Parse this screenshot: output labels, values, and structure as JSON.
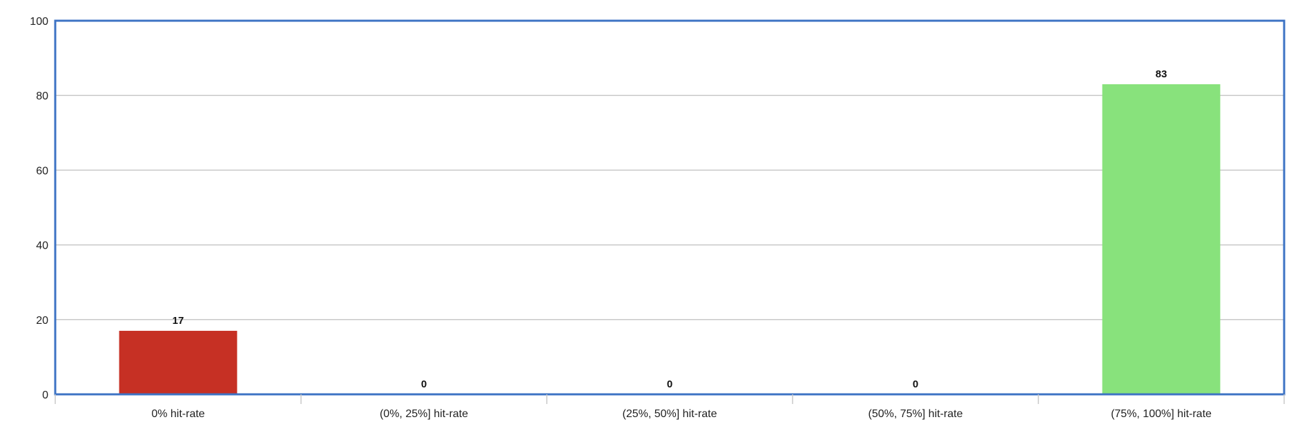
{
  "chart_data": {
    "type": "bar",
    "categories": [
      "0% hit-rate",
      "(0%, 25%] hit-rate",
      "(25%, 50%] hit-rate",
      "(50%, 75%] hit-rate",
      "(75%, 100%] hit-rate"
    ],
    "values": [
      17,
      0,
      0,
      0,
      83
    ],
    "data_labels": [
      "17",
      "0",
      "0",
      "0",
      "83"
    ],
    "bar_colors": [
      "#c63024",
      "#c63024",
      "#c63024",
      "#c63024",
      "#88e27c"
    ],
    "ylim": [
      0,
      100
    ],
    "yticks": [
      0,
      20,
      40,
      60,
      80,
      100
    ],
    "ytick_labels": [
      "0",
      "20",
      "40",
      "60",
      "80",
      "100"
    ],
    "grid": true,
    "legend": "none",
    "title": "",
    "xlabel": "",
    "ylabel": "",
    "frame_color": "#3d73c4",
    "grid_color": "#c8c8c8"
  }
}
